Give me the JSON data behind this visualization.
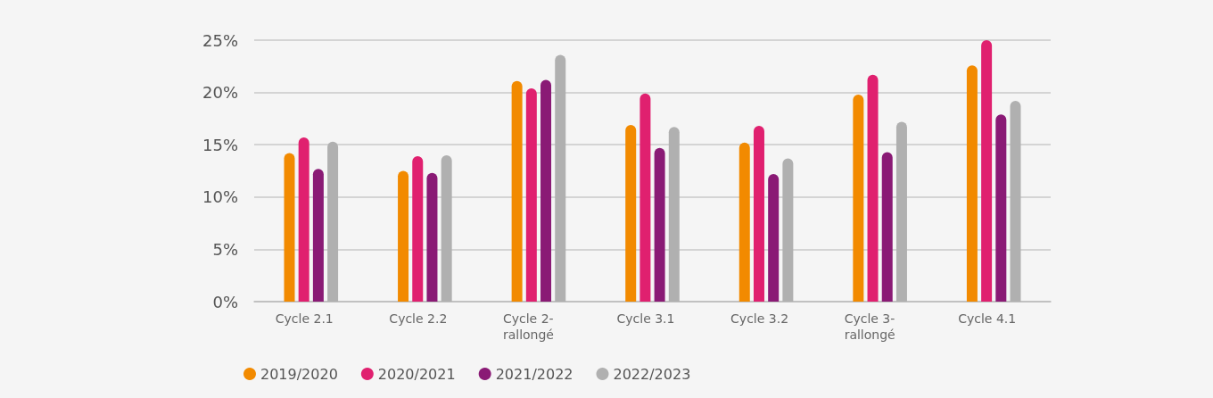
{
  "chart_data": {
    "type": "bar",
    "categories": [
      "Cycle 2.1",
      "Cycle 2.2",
      "Cycle 2-rallongé",
      "Cycle 3.1",
      "Cycle 3.2",
      "Cycle 3-rallongé",
      "Cycle 4.1"
    ],
    "series": [
      {
        "name": "2019/2020",
        "color": "#f28a00",
        "values": [
          14.2,
          12.5,
          21.1,
          16.9,
          15.2,
          19.8,
          22.6
        ]
      },
      {
        "name": "2020/2021",
        "color": "#e0206f",
        "values": [
          15.7,
          13.9,
          20.4,
          19.9,
          16.8,
          21.7,
          25.0
        ]
      },
      {
        "name": "2021/2022",
        "color": "#8a1a75",
        "values": [
          12.7,
          12.3,
          21.2,
          14.7,
          12.2,
          14.3,
          17.9
        ]
      },
      {
        "name": "2022/2023",
        "color": "#b0b0b0",
        "values": [
          15.3,
          14.0,
          23.6,
          16.7,
          13.7,
          17.2,
          19.2
        ]
      }
    ],
    "ylim": [
      0,
      25
    ],
    "yticks": [
      {
        "value": 0,
        "label": "0%"
      },
      {
        "value": 5,
        "label": "5%"
      },
      {
        "value": 10,
        "label": "10%"
      },
      {
        "value": 15,
        "label": "15%"
      },
      {
        "value": 20,
        "label": "20%"
      },
      {
        "value": 25,
        "label": "25%"
      }
    ],
    "grid": "y",
    "legend": "bottom left"
  }
}
